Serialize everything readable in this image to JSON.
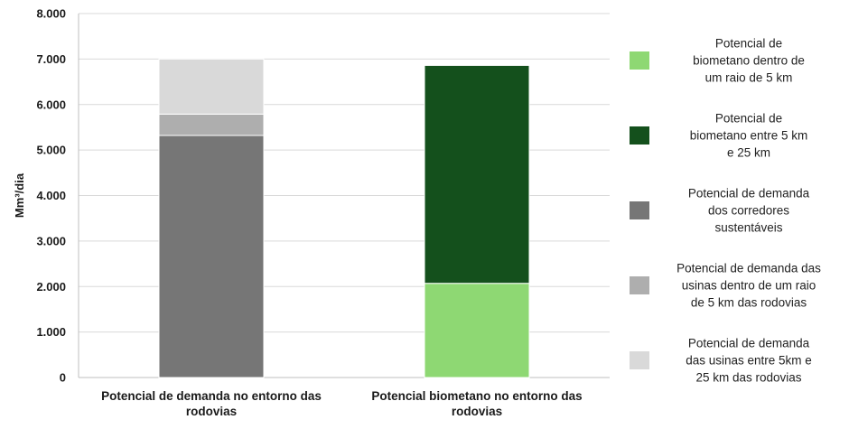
{
  "chart_data": {
    "type": "bar",
    "stacked": true,
    "ylabel": "Mm³/dia",
    "ylim": [
      0,
      8000
    ],
    "yticks": [
      "0",
      "1.000",
      "2.000",
      "3.000",
      "4.000",
      "5.000",
      "6.000",
      "7.000",
      "8.000"
    ],
    "grid": true,
    "legend_position": "right",
    "categories": [
      [
        "Potencial de demanda no entorno das",
        "rodovias"
      ],
      [
        "Potencial biometano no entorno das",
        "rodovias"
      ]
    ],
    "series": [
      {
        "name": [
          "Potencial de",
          "biometano dentro de",
          "um raio de 5 km"
        ],
        "color": "#8ed873",
        "values": [
          0,
          2070
        ]
      },
      {
        "name": [
          "Potencial de",
          "biometano entre 5 km",
          "e 25 km"
        ],
        "color": "#14501c",
        "values": [
          0,
          4790
        ]
      },
      {
        "name": [
          "Potencial de demanda",
          "dos corredores",
          "sustentáveis"
        ],
        "color": "#767676",
        "values": [
          5320,
          0
        ]
      },
      {
        "name": [
          "Potencial de demanda das",
          "usinas dentro de um raio",
          "de 5 km das rodovias"
        ],
        "color": "#aeaeae",
        "values": [
          470,
          0
        ]
      },
      {
        "name": [
          "Potencial de demanda",
          "das usinas entre 5km e",
          "25 km das rodovias"
        ],
        "color": "#d9d9d9",
        "values": [
          1210,
          0
        ]
      }
    ]
  }
}
